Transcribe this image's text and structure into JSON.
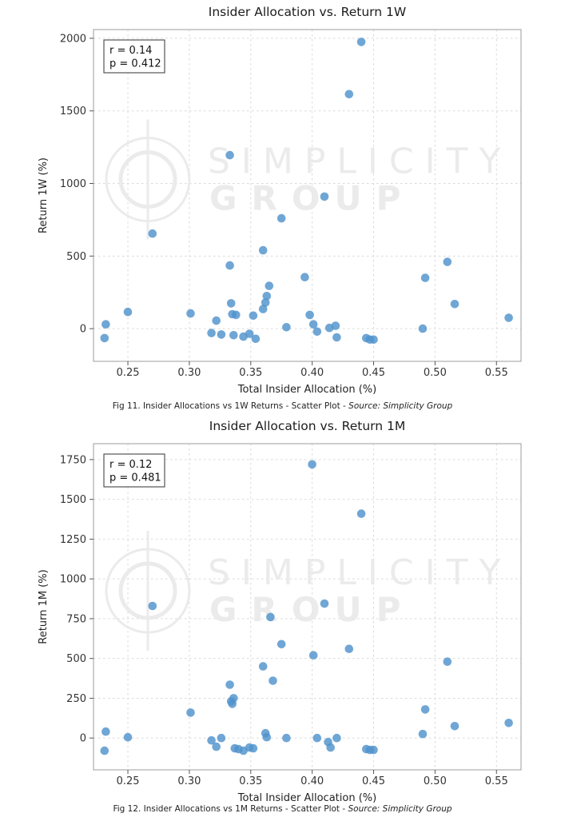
{
  "page": {
    "background": "#ffffff"
  },
  "watermark": {
    "line1": "SIMPLICITY",
    "line2": "GROUP",
    "color": "#e9e9e9"
  },
  "chart_data": [
    {
      "type": "scatter",
      "title": "Insider Allocation vs. Return 1W",
      "xlabel": "Total Insider Allocation (%)",
      "ylabel": "Return 1W (%)",
      "xlim": [
        0.222,
        0.57
      ],
      "ylim": [
        -225,
        2060
      ],
      "xticks": [
        0.25,
        0.3,
        0.35,
        0.4,
        0.45,
        0.5,
        0.55
      ],
      "yticks": [
        0,
        500,
        1000,
        1500,
        2000
      ],
      "annotation": [
        "r = 0.14",
        "p = 0.412"
      ],
      "legend": "none",
      "grid": true,
      "marker_color": "#4f92cc",
      "caption_main": "Fig 11. Insider Allocations vs 1W Returns - Scatter Plot - ",
      "caption_source": "Source: Simplicity Group",
      "points": [
        [
          0.232,
          30
        ],
        [
          0.231,
          -65
        ],
        [
          0.25,
          115
        ],
        [
          0.27,
          655
        ],
        [
          0.301,
          105
        ],
        [
          0.318,
          -30
        ],
        [
          0.322,
          55
        ],
        [
          0.326,
          -40
        ],
        [
          0.333,
          1195
        ],
        [
          0.333,
          435
        ],
        [
          0.334,
          175
        ],
        [
          0.335,
          100
        ],
        [
          0.338,
          95
        ],
        [
          0.336,
          -45
        ],
        [
          0.344,
          -55
        ],
        [
          0.349,
          -35
        ],
        [
          0.352,
          90
        ],
        [
          0.354,
          -70
        ],
        [
          0.36,
          540
        ],
        [
          0.36,
          135
        ],
        [
          0.362,
          180
        ],
        [
          0.363,
          225
        ],
        [
          0.365,
          295
        ],
        [
          0.375,
          760
        ],
        [
          0.379,
          10
        ],
        [
          0.394,
          355
        ],
        [
          0.398,
          95
        ],
        [
          0.401,
          30
        ],
        [
          0.404,
          -20
        ],
        [
          0.41,
          910
        ],
        [
          0.414,
          5
        ],
        [
          0.419,
          20
        ],
        [
          0.42,
          -60
        ],
        [
          0.43,
          1615
        ],
        [
          0.44,
          1975
        ],
        [
          0.444,
          -65
        ],
        [
          0.447,
          -75
        ],
        [
          0.45,
          -75
        ],
        [
          0.49,
          0
        ],
        [
          0.492,
          350
        ],
        [
          0.51,
          460
        ],
        [
          0.516,
          170
        ],
        [
          0.56,
          75
        ]
      ]
    },
    {
      "type": "scatter",
      "title": "Insider Allocation vs. Return 1M",
      "xlabel": "Total Insider Allocation (%)",
      "ylabel": "Return 1M (%)",
      "xlim": [
        0.222,
        0.57
      ],
      "ylim": [
        -200,
        1850
      ],
      "xticks": [
        0.25,
        0.3,
        0.35,
        0.4,
        0.45,
        0.5,
        0.55
      ],
      "yticks": [
        0,
        250,
        500,
        750,
        1000,
        1250,
        1500,
        1750
      ],
      "annotation": [
        "r = 0.12",
        "p = 0.481"
      ],
      "legend": "none",
      "grid": true,
      "marker_color": "#4f92cc",
      "caption_main": "Fig 12. Insider Allocations vs 1M Returns - Scatter Plot - ",
      "caption_source": "Source: Simplicity Group",
      "points": [
        [
          0.232,
          40
        ],
        [
          0.231,
          -80
        ],
        [
          0.25,
          5
        ],
        [
          0.27,
          830
        ],
        [
          0.301,
          160
        ],
        [
          0.318,
          -15
        ],
        [
          0.322,
          -55
        ],
        [
          0.326,
          0
        ],
        [
          0.333,
          335
        ],
        [
          0.334,
          230
        ],
        [
          0.335,
          215
        ],
        [
          0.336,
          250
        ],
        [
          0.337,
          -65
        ],
        [
          0.34,
          -70
        ],
        [
          0.344,
          -80
        ],
        [
          0.349,
          -60
        ],
        [
          0.352,
          -65
        ],
        [
          0.36,
          450
        ],
        [
          0.362,
          30
        ],
        [
          0.363,
          5
        ],
        [
          0.366,
          760
        ],
        [
          0.368,
          360
        ],
        [
          0.375,
          590
        ],
        [
          0.379,
          0
        ],
        [
          0.4,
          1720
        ],
        [
          0.401,
          520
        ],
        [
          0.404,
          0
        ],
        [
          0.41,
          845
        ],
        [
          0.413,
          -25
        ],
        [
          0.415,
          -60
        ],
        [
          0.42,
          0
        ],
        [
          0.43,
          560
        ],
        [
          0.44,
          1410
        ],
        [
          0.444,
          -70
        ],
        [
          0.447,
          -75
        ],
        [
          0.45,
          -75
        ],
        [
          0.49,
          25
        ],
        [
          0.492,
          180
        ],
        [
          0.51,
          480
        ],
        [
          0.516,
          75
        ],
        [
          0.56,
          95
        ]
      ]
    }
  ]
}
